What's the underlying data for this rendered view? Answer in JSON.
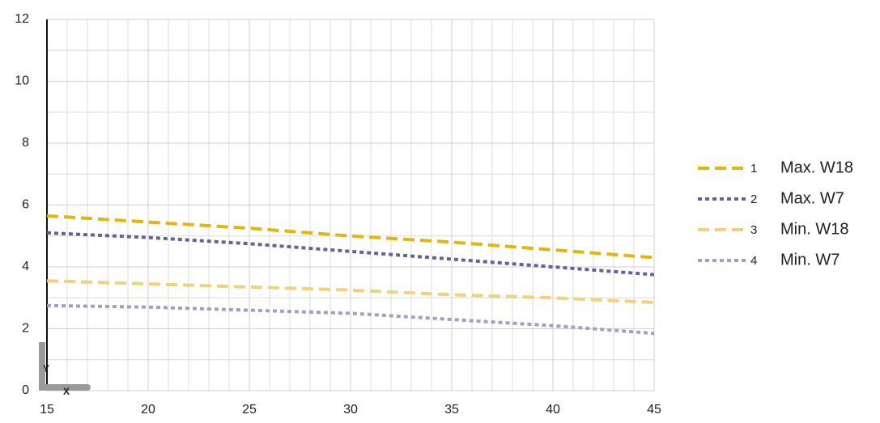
{
  "chart_data": {
    "type": "line",
    "x": [
      15,
      20,
      25,
      30,
      35,
      40,
      45
    ],
    "series": [
      {
        "key": "1",
        "name": "Max. W18",
        "color": "#e3b60c",
        "dash": "14 7",
        "values": [
          5.65,
          5.45,
          5.25,
          5.0,
          4.8,
          4.55,
          4.3
        ]
      },
      {
        "key": "2",
        "name": "Max. W7",
        "color": "#6a5f98",
        "dash": "5 4",
        "values": [
          5.1,
          4.95,
          4.75,
          4.5,
          4.25,
          4.0,
          3.75
        ]
      },
      {
        "key": "3",
        "name": "Min. W18",
        "color": "#f1d27c",
        "dash": "14 7",
        "values": [
          3.55,
          3.45,
          3.35,
          3.25,
          3.1,
          3.0,
          2.85
        ]
      },
      {
        "key": "4",
        "name": "Min. W7",
        "color": "#a59dc6",
        "dash": "5 4",
        "values": [
          2.75,
          2.7,
          2.6,
          2.5,
          2.3,
          2.1,
          1.85
        ]
      }
    ],
    "xlim": [
      15,
      45
    ],
    "ylim": [
      0,
      12
    ],
    "xticks": [
      15,
      20,
      25,
      30,
      35,
      40,
      45
    ],
    "yticks": [
      0,
      2,
      4,
      6,
      8,
      10,
      12
    ],
    "xgrid": [
      16,
      17,
      18,
      19,
      21,
      22,
      23,
      24,
      26,
      27,
      28,
      29,
      31,
      32,
      33,
      34,
      36,
      37,
      38,
      39,
      41,
      42,
      43,
      44
    ],
    "ygrid": [
      1,
      3,
      5,
      7,
      9,
      11
    ],
    "grid": true,
    "axis_icon": {
      "y": "Y",
      "x": "X"
    },
    "legend": "right"
  }
}
